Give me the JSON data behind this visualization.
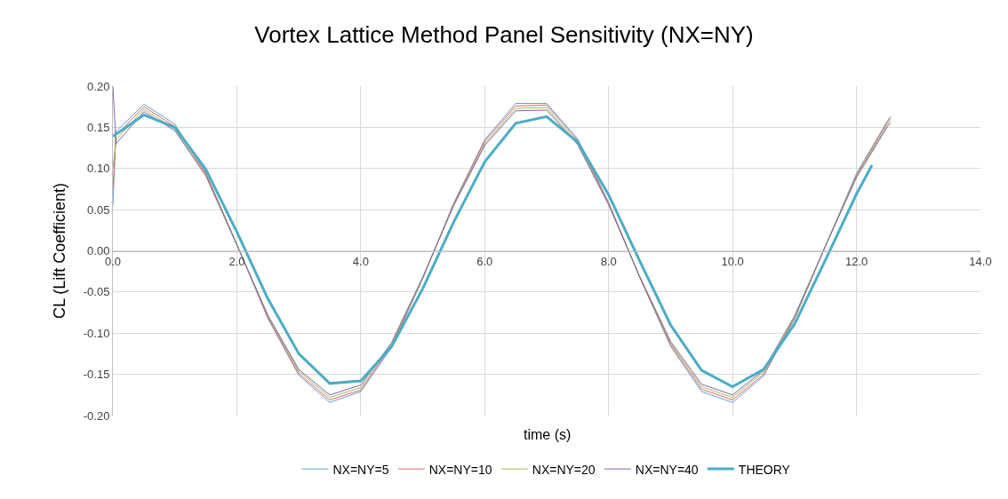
{
  "chart_data": {
    "type": "line",
    "title": "Vortex Lattice Method Panel Sensitivity (NX=NY)",
    "xlabel": "time (s)",
    "ylabel": "CL (Lift Coefficient)",
    "xlim": [
      0,
      14
    ],
    "xticks": [
      {
        "value": 0,
        "label": "0.0"
      },
      {
        "value": 2,
        "label": "2.0"
      },
      {
        "value": 4,
        "label": "4.0"
      },
      {
        "value": 6,
        "label": "6.0"
      },
      {
        "value": 8,
        "label": "8.0"
      },
      {
        "value": 10,
        "label": "10.0"
      },
      {
        "value": 12,
        "label": "12.0"
      },
      {
        "value": 14,
        "label": "14.0"
      }
    ],
    "ylim": [
      -0.2,
      0.2
    ],
    "yticks": [
      {
        "value": -0.2,
        "label": "-0.20"
      },
      {
        "value": -0.15,
        "label": "-0.15"
      },
      {
        "value": -0.1,
        "label": "-0.10"
      },
      {
        "value": -0.05,
        "label": "-0.05"
      },
      {
        "value": 0,
        "label": "0.00"
      },
      {
        "value": 0.05,
        "label": "0.05"
      },
      {
        "value": 0.1,
        "label": "0.10"
      },
      {
        "value": 0.15,
        "label": "0.15"
      },
      {
        "value": 0.2,
        "label": "0.20"
      }
    ],
    "grid": true,
    "legend": "bottom",
    "marker": "none",
    "x": [
      0,
      0.05,
      0.5,
      1.0,
      1.5,
      2.0,
      2.5,
      3.0,
      3.5,
      4.0,
      4.5,
      5.0,
      5.5,
      6.0,
      6.5,
      7.0,
      7.5,
      8.0,
      8.5,
      9.0,
      9.5,
      10.0,
      10.5,
      11.0,
      11.5,
      12.0,
      12.5,
      12.55
    ],
    "series": [
      {
        "name": "NX=NY=5",
        "color": "#6a9ad6",
        "values": [
          0.055,
          0.145,
          0.178,
          0.154,
          0.095,
          0.008,
          -0.082,
          -0.151,
          -0.184,
          -0.171,
          -0.117,
          -0.034,
          0.058,
          0.135,
          0.179,
          0.179,
          0.136,
          0.059,
          -0.032,
          -0.116,
          -0.171,
          -0.184,
          -0.152,
          -0.083,
          0.006,
          0.094,
          0.158,
          0.163
        ]
      },
      {
        "name": "NX=NY=10",
        "color": "#e06666",
        "values": [
          0.075,
          0.14,
          0.175,
          0.151,
          0.094,
          0.008,
          -0.081,
          -0.149,
          -0.181,
          -0.169,
          -0.115,
          -0.033,
          0.057,
          0.133,
          0.176,
          0.177,
          0.134,
          0.058,
          -0.032,
          -0.114,
          -0.168,
          -0.181,
          -0.15,
          -0.082,
          0.006,
          0.092,
          0.156,
          0.161
        ]
      },
      {
        "name": "NX=NY=20",
        "color": "#9bbb59",
        "values": [
          0.1,
          0.135,
          0.172,
          0.148,
          0.092,
          0.008,
          -0.079,
          -0.146,
          -0.178,
          -0.166,
          -0.113,
          -0.033,
          0.056,
          0.13,
          0.173,
          0.174,
          0.131,
          0.057,
          -0.031,
          -0.112,
          -0.165,
          -0.178,
          -0.147,
          -0.081,
          0.006,
          0.091,
          0.153,
          0.158
        ]
      },
      {
        "name": "NX=NY=40",
        "color": "#8064a2",
        "values": [
          0.2,
          0.13,
          0.169,
          0.146,
          0.091,
          0.007,
          -0.078,
          -0.144,
          -0.175,
          -0.163,
          -0.111,
          -0.032,
          0.055,
          0.128,
          0.17,
          0.171,
          0.129,
          0.056,
          -0.031,
          -0.11,
          -0.162,
          -0.175,
          -0.145,
          -0.079,
          0.006,
          0.089,
          0.151,
          0.155
        ]
      },
      {
        "name": "THEORY",
        "color": "#4bacc6",
        "x": [
          0,
          0.5,
          1.0,
          1.5,
          2.0,
          2.5,
          3.0,
          3.5,
          4.0,
          4.5,
          5.0,
          5.5,
          6.0,
          6.5,
          7.0,
          7.5,
          8.0,
          8.5,
          9.0,
          9.5,
          10.0,
          10.5,
          11.0,
          11.5,
          12.0,
          12.25
        ],
        "values": [
          0.139,
          0.165,
          0.15,
          0.099,
          0.023,
          -0.058,
          -0.125,
          -0.161,
          -0.158,
          -0.116,
          -0.046,
          0.035,
          0.108,
          0.155,
          0.163,
          0.132,
          0.068,
          -0.012,
          -0.09,
          -0.145,
          -0.165,
          -0.144,
          -0.089,
          -0.011,
          0.069,
          0.104
        ]
      }
    ]
  }
}
